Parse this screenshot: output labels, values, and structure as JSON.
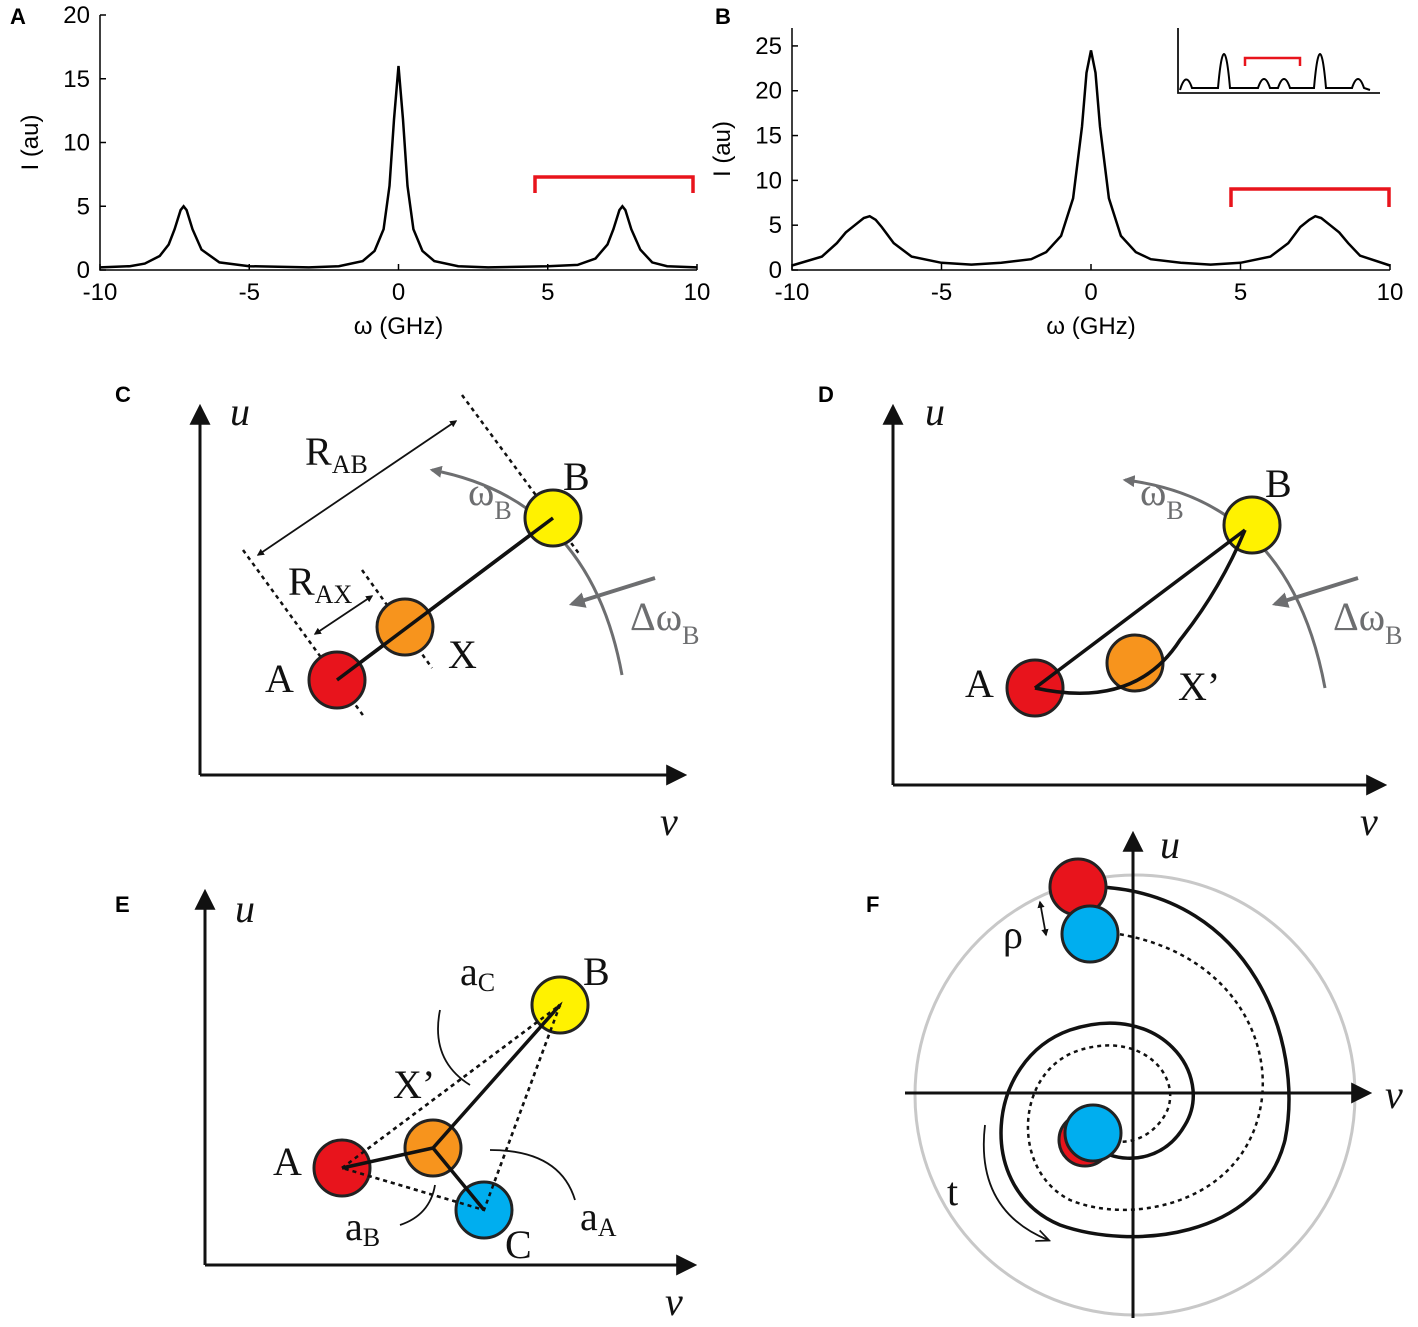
{
  "chart_data": [
    {
      "type": "line",
      "panel": "A",
      "x_label": "ω (GHz)",
      "y_label": "I (au)",
      "color": "#000000",
      "x": [
        -10,
        -9,
        -8.5,
        -8,
        -7.7,
        -7.5,
        -7.3,
        -7.2,
        -7.1,
        -6.9,
        -6.6,
        -6,
        -5,
        -3,
        -2,
        -1.2,
        -0.8,
        -0.5,
        -0.3,
        -0.15,
        0,
        0.15,
        0.3,
        0.5,
        0.8,
        1.2,
        2,
        3,
        5,
        6,
        6.6,
        7,
        7.2,
        7.4,
        7.5,
        7.6,
        7.8,
        8.1,
        8.5,
        9,
        10
      ],
      "values": [
        0.2,
        0.3,
        0.5,
        1.1,
        2.0,
        3.2,
        4.7,
        5.0,
        4.7,
        3.2,
        1.6,
        0.6,
        0.3,
        0.2,
        0.3,
        0.7,
        1.5,
        3.2,
        6.6,
        11.8,
        16,
        11.8,
        6.6,
        3.2,
        1.5,
        0.7,
        0.3,
        0.2,
        0.3,
        0.4,
        0.9,
        2.0,
        3.2,
        4.7,
        5.0,
        4.7,
        3.2,
        1.6,
        0.6,
        0.3,
        0.2
      ],
      "xlim": [
        -10,
        10
      ],
      "ylim": [
        0,
        20
      ],
      "xticks": [
        -10,
        -5,
        0,
        5,
        10
      ],
      "yticks": [
        0,
        5,
        10,
        15,
        20
      ]
    },
    {
      "type": "line",
      "panel": "B",
      "x_label": "ω (GHz)",
      "y_label": "I (au)",
      "color": "#000000",
      "x": [
        -10,
        -9,
        -8.5,
        -8.2,
        -7.9,
        -7.6,
        -7.4,
        -7.2,
        -7,
        -6.6,
        -6,
        -5,
        -4,
        -3,
        -2,
        -1.5,
        -1,
        -0.6,
        -0.3,
        -0.15,
        0,
        0.15,
        0.3,
        0.6,
        1,
        1.5,
        2,
        3,
        4,
        5,
        6,
        6.6,
        7,
        7.3,
        7.5,
        7.7,
        8,
        8.3,
        8.6,
        9,
        10
      ],
      "values": [
        0.5,
        1.5,
        3.0,
        4.2,
        5.0,
        5.8,
        6.0,
        5.6,
        4.8,
        3.0,
        1.5,
        0.8,
        0.6,
        0.8,
        1.2,
        2.0,
        3.8,
        8,
        16,
        22,
        24.5,
        22,
        16,
        8,
        3.8,
        2.0,
        1.2,
        0.8,
        0.6,
        0.8,
        1.5,
        3.0,
        4.8,
        5.6,
        6.0,
        5.8,
        5.0,
        4.2,
        3.0,
        1.6,
        0.5
      ],
      "xlim": [
        -10,
        10
      ],
      "ylim": [
        0,
        27
      ],
      "xticks": [
        -10,
        -5,
        0,
        5,
        10
      ],
      "yticks": [
        0,
        5,
        10,
        15,
        20,
        25
      ]
    }
  ],
  "diagrams": {
    "C": {
      "panel": "C",
      "u": "u",
      "v": "v",
      "A": "A",
      "X": "X",
      "B": "B",
      "R_AB": {
        "main": "R",
        "sub": "AB"
      },
      "R_AX": {
        "main": "R",
        "sub": "AX"
      },
      "omega_B": {
        "main": "ω",
        "sub": "B"
      },
      "delta_omega_B": {
        "main": "Δω",
        "sub": "B"
      }
    },
    "D": {
      "panel": "D",
      "u": "u",
      "v": "v",
      "A": "A",
      "X": "X’",
      "B": "B",
      "omega_B": {
        "main": "ω",
        "sub": "B"
      },
      "delta_omega_B": {
        "main": "Δω",
        "sub": "B"
      }
    },
    "E": {
      "panel": "E",
      "u": "u",
      "v": "v",
      "A": "A",
      "X": "X’",
      "B": "B",
      "C": "C",
      "a_A": {
        "main": "a",
        "sub": "A"
      },
      "a_B": {
        "main": "a",
        "sub": "B"
      },
      "a_C": {
        "main": "a",
        "sub": "C"
      }
    },
    "F": {
      "panel": "F",
      "u": "u",
      "v": "v",
      "rho": "ρ",
      "t": "t"
    }
  }
}
